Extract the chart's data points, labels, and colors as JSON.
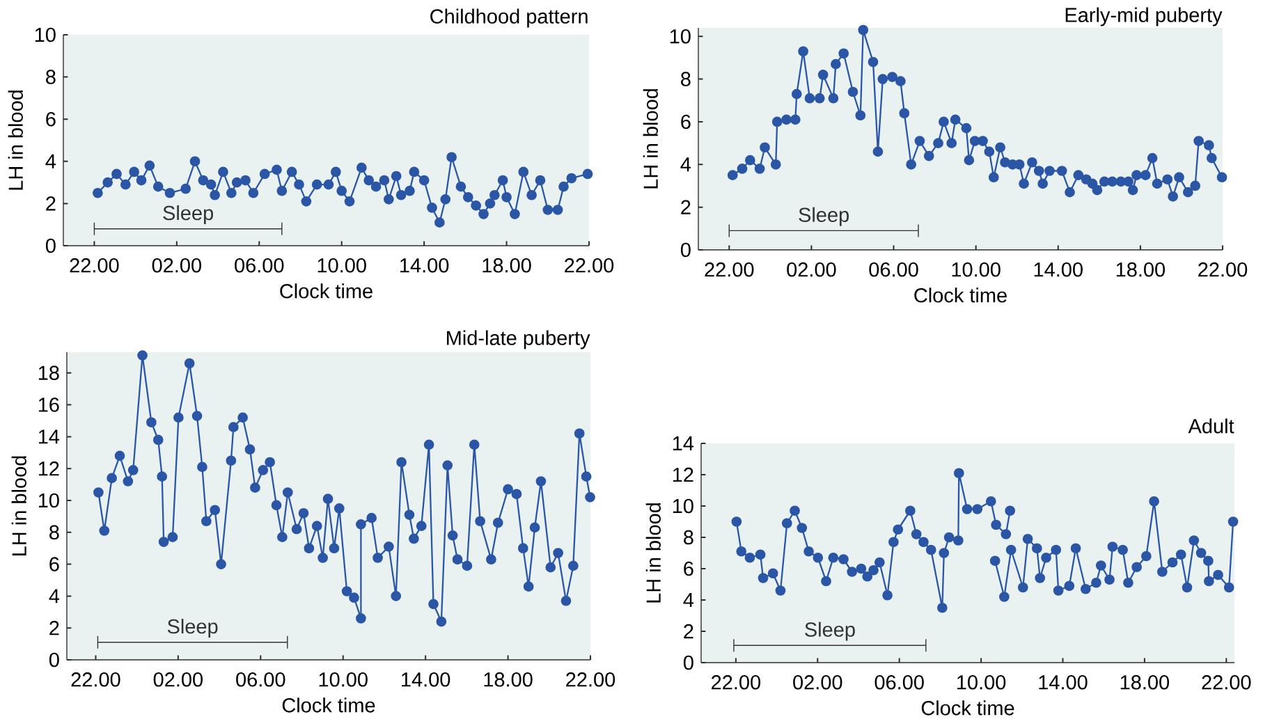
{
  "chart_data": [
    {
      "type": "line",
      "title": "Childhood pattern",
      "xlabel": "Clock time",
      "ylabel": "LH in blood",
      "marker": "circle",
      "line_style": "solid",
      "xlim": [
        "2000-01-01T20:30",
        "2000-01-02T22:00"
      ],
      "ylim": [
        0,
        10
      ],
      "xticks": [
        {
          "value": "2000-01-01T22:00",
          "label": "22.00"
        },
        {
          "value": "2000-01-02T02:00",
          "label": "02.00"
        },
        {
          "value": "2000-01-02T06:00",
          "label": "06.00"
        },
        {
          "value": "2000-01-02T10:00",
          "label": "10.00"
        },
        {
          "value": "2000-01-02T14:00",
          "label": "14.00"
        },
        {
          "value": "2000-01-02T18:00",
          "label": "18.00"
        },
        {
          "value": "2000-01-02T22:00",
          "label": "22.00"
        }
      ],
      "yticks": [
        0,
        2,
        4,
        6,
        8,
        10
      ],
      "series": [
        {
          "color": "#2a56a5",
          "x": [
            "2000-01-01T22:10",
            "2000-01-01T22:39",
            "2000-01-01T23:05",
            "2000-01-01T23:31",
            "2000-01-01T23:56",
            "2000-01-02T00:17",
            "2000-01-02T00:41",
            "2000-01-02T01:06",
            "2000-01-02T01:40",
            "2000-01-02T02:26",
            "2000-01-02T02:53",
            "2000-01-02T03:17",
            "2000-01-02T03:40",
            "2000-01-02T03:51",
            "2000-01-02T04:15",
            "2000-01-02T04:39",
            "2000-01-02T04:55",
            "2000-01-02T05:20",
            "2000-01-02T05:43",
            "2000-01-02T06:16",
            "2000-01-02T06:51",
            "2000-01-02T07:06",
            "2000-01-02T07:35",
            "2000-01-02T07:56",
            "2000-01-02T08:17",
            "2000-01-02T08:48",
            "2000-01-02T09:22",
            "2000-01-02T09:43",
            "2000-01-02T10:00",
            "2000-01-02T10:23",
            "2000-01-02T10:58",
            "2000-01-02T11:19",
            "2000-01-02T11:40",
            "2000-01-02T12:04",
            "2000-01-02T12:17",
            "2000-01-02T12:39",
            "2000-01-02T12:53",
            "2000-01-02T13:18",
            "2000-01-02T13:31",
            "2000-01-02T14:00",
            "2000-01-02T14:23",
            "2000-01-02T14:45",
            "2000-01-02T15:02",
            "2000-01-02T15:20",
            "2000-01-02T15:47",
            "2000-01-02T16:08",
            "2000-01-02T16:31",
            "2000-01-02T16:53",
            "2000-01-02T17:12",
            "2000-01-02T17:25",
            "2000-01-02T17:49",
            "2000-01-02T18:00",
            "2000-01-02T18:24",
            "2000-01-02T18:49",
            "2000-01-02T19:13",
            "2000-01-02T19:38",
            "2000-01-02T20:00",
            "2000-01-02T20:29",
            "2000-01-02T20:46",
            "2000-01-02T21:09",
            "2000-01-02T21:56"
          ],
          "values": [
            2.5,
            3.0,
            3.4,
            2.9,
            3.5,
            3.1,
            3.8,
            2.8,
            2.5,
            2.7,
            4.0,
            3.1,
            2.9,
            2.4,
            3.5,
            2.5,
            3.0,
            3.1,
            2.5,
            3.4,
            3.6,
            2.6,
            3.5,
            2.9,
            2.1,
            2.9,
            2.9,
            3.5,
            2.6,
            2.1,
            3.7,
            3.1,
            2.8,
            3.1,
            2.2,
            3.3,
            2.4,
            2.6,
            3.5,
            3.1,
            1.8,
            1.1,
            2.2,
            4.2,
            2.8,
            2.3,
            1.9,
            1.5,
            2.0,
            2.4,
            3.1,
            2.3,
            1.5,
            3.5,
            2.4,
            3.1,
            1.7,
            1.7,
            2.8,
            3.2,
            3.4
          ]
        },
        {
          "name": "Sleep",
          "color": "#333333",
          "marker": "none",
          "x": [
            "2000-01-01T22:00",
            "2000-01-02T07:06"
          ],
          "values": [
            0.8,
            0.8
          ]
        }
      ]
    },
    {
      "type": "line",
      "title": "Early-mid puberty",
      "xlabel": "Clock time",
      "ylabel": "LH in blood",
      "marker": "circle",
      "line_style": "solid",
      "xlim": [
        "2000-01-01T20:30",
        "2000-01-02T22:00"
      ],
      "ylim": [
        0,
        10.4
      ],
      "xticks": [
        {
          "value": "2000-01-01T22:00",
          "label": "22.00"
        },
        {
          "value": "2000-01-02T02:00",
          "label": "02.00"
        },
        {
          "value": "2000-01-02T06:00",
          "label": "06.00"
        },
        {
          "value": "2000-01-02T10:00",
          "label": "10.00"
        },
        {
          "value": "2000-01-02T14:00",
          "label": "14.00"
        },
        {
          "value": "2000-01-02T18:00",
          "label": "18.00"
        },
        {
          "value": "2000-01-02T22:00",
          "label": "22.00"
        }
      ],
      "yticks": [
        0,
        2,
        4,
        6,
        8,
        10
      ],
      "series": [
        {
          "color": "#2a56a5",
          "x": [
            "2000-01-01T22:10",
            "2000-01-01T22:38",
            "2000-01-01T23:01",
            "2000-01-01T23:29",
            "2000-01-01T23:44",
            "2000-01-02T00:16",
            "2000-01-02T00:20",
            "2000-01-02T00:47",
            "2000-01-02T01:13",
            "2000-01-02T01:17",
            "2000-01-02T01:36",
            "2000-01-02T01:55",
            "2000-01-02T02:24",
            "2000-01-02T02:34",
            "2000-01-02T03:04",
            "2000-01-02T03:11",
            "2000-01-02T03:34",
            "2000-01-02T04:01",
            "2000-01-02T04:23",
            "2000-01-02T04:31",
            "2000-01-02T05:00",
            "2000-01-02T05:14",
            "2000-01-02T05:28",
            "2000-01-02T05:56",
            "2000-01-02T06:20",
            "2000-01-02T06:31",
            "2000-01-02T06:51",
            "2000-01-02T07:16",
            "2000-01-02T07:43",
            "2000-01-02T08:10",
            "2000-01-02T08:26",
            "2000-01-02T08:49",
            "2000-01-02T09:00",
            "2000-01-02T09:32",
            "2000-01-02T09:40",
            "2000-01-02T09:57",
            "2000-01-02T10:20",
            "2000-01-02T10:39",
            "2000-01-02T10:52",
            "2000-01-02T11:11",
            "2000-01-02T11:25",
            "2000-01-02T11:47",
            "2000-01-02T12:07",
            "2000-01-02T12:20",
            "2000-01-02T12:44",
            "2000-01-02T13:04",
            "2000-01-02T13:15",
            "2000-01-02T13:35",
            "2000-01-02T14:11",
            "2000-01-02T14:34",
            "2000-01-02T14:59",
            "2000-01-02T15:22",
            "2000-01-02T15:40",
            "2000-01-02T15:54",
            "2000-01-02T16:15",
            "2000-01-02T16:38",
            "2000-01-02T17:03",
            "2000-01-02T17:25",
            "2000-01-02T17:38",
            "2000-01-02T17:49",
            "2000-01-02T18:15",
            "2000-01-02T18:35",
            "2000-01-02T18:49",
            "2000-01-02T19:19",
            "2000-01-02T19:35",
            "2000-01-02T19:53",
            "2000-01-02T20:19",
            "2000-01-02T20:40",
            "2000-01-02T20:50",
            "2000-01-02T21:20",
            "2000-01-02T21:28",
            "2000-01-02T21:58"
          ],
          "values": [
            3.5,
            3.8,
            4.2,
            3.8,
            4.8,
            4.0,
            6.0,
            6.1,
            6.1,
            7.3,
            9.3,
            7.1,
            7.1,
            8.2,
            7.1,
            8.7,
            9.2,
            7.4,
            6.3,
            10.3,
            8.8,
            4.6,
            8.0,
            8.1,
            7.9,
            6.4,
            4.0,
            5.1,
            4.4,
            5.0,
            6.0,
            5.0,
            6.1,
            5.7,
            4.2,
            5.1,
            5.1,
            4.6,
            3.4,
            4.8,
            4.1,
            4.0,
            4.0,
            3.1,
            4.1,
            3.7,
            3.1,
            3.7,
            3.7,
            2.7,
            3.5,
            3.3,
            3.1,
            2.8,
            3.2,
            3.2,
            3.2,
            3.2,
            2.8,
            3.5,
            3.5,
            4.3,
            3.1,
            3.3,
            2.5,
            3.4,
            2.7,
            3.0,
            5.1,
            4.9,
            4.3,
            3.4
          ]
        },
        {
          "name": "Sleep",
          "color": "#333333",
          "marker": "none",
          "x": [
            "2000-01-01T22:00",
            "2000-01-02T07:12"
          ],
          "values": [
            0.9,
            0.9
          ]
        }
      ]
    },
    {
      "type": "line",
      "title": "Mid-late puberty",
      "xlabel": "Clock time",
      "ylabel": "LH in blood",
      "marker": "circle",
      "line_style": "solid",
      "xlim": [
        "2000-01-01T20:36",
        "2000-01-02T22:00"
      ],
      "ylim": [
        0,
        19.3
      ],
      "xticks": [
        {
          "value": "2000-01-01T22:00",
          "label": "22.00"
        },
        {
          "value": "2000-01-02T02:00",
          "label": "02.00"
        },
        {
          "value": "2000-01-02T06:00",
          "label": "06.00"
        },
        {
          "value": "2000-01-02T10:00",
          "label": "10.00"
        },
        {
          "value": "2000-01-02T14:00",
          "label": "14.00"
        },
        {
          "value": "2000-01-02T18:00",
          "label": "18.00"
        },
        {
          "value": "2000-01-02T22:00",
          "label": "22.00"
        }
      ],
      "yticks": [
        0,
        2,
        4,
        6,
        8,
        10,
        12,
        14,
        16,
        18
      ],
      "series": [
        {
          "color": "#2a56a5",
          "x": [
            "2000-01-01T22:08",
            "2000-01-01T22:25",
            "2000-01-01T22:47",
            "2000-01-01T23:10",
            "2000-01-01T23:34",
            "2000-01-01T23:49",
            "2000-01-02T00:16",
            "2000-01-02T00:42",
            "2000-01-02T01:02",
            "2000-01-02T01:13",
            "2000-01-02T01:18",
            "2000-01-02T01:44",
            "2000-01-02T02:01",
            "2000-01-02T02:33",
            "2000-01-02T02:55",
            "2000-01-02T03:10",
            "2000-01-02T03:22",
            "2000-01-02T03:47",
            "2000-01-02T04:05",
            "2000-01-02T04:34",
            "2000-01-02T04:41",
            "2000-01-02T05:08",
            "2000-01-02T05:29",
            "2000-01-02T05:44",
            "2000-01-02T06:07",
            "2000-01-02T06:27",
            "2000-01-02T06:46",
            "2000-01-02T07:03",
            "2000-01-02T07:19",
            "2000-01-02T07:45",
            "2000-01-02T08:05",
            "2000-01-02T08:21",
            "2000-01-02T08:44",
            "2000-01-02T09:01",
            "2000-01-02T09:16",
            "2000-01-02T09:34",
            "2000-01-02T09:49",
            "2000-01-02T10:11",
            "2000-01-02T10:32",
            "2000-01-02T10:52",
            "2000-01-02T10:52",
            "2000-01-02T11:23",
            "2000-01-02T11:41",
            "2000-01-02T12:13",
            "2000-01-02T12:34",
            "2000-01-02T12:50",
            "2000-01-02T13:13",
            "2000-01-02T13:26",
            "2000-01-02T13:48",
            "2000-01-02T14:10",
            "2000-01-02T14:23",
            "2000-01-02T14:46",
            "2000-01-02T15:04",
            "2000-01-02T15:19",
            "2000-01-02T15:33",
            "2000-01-02T16:01",
            "2000-01-02T16:22",
            "2000-01-02T16:39",
            "2000-01-02T17:11",
            "2000-01-02T17:31",
            "2000-01-02T18:00",
            "2000-01-02T18:25",
            "2000-01-02T18:44",
            "2000-01-02T19:00",
            "2000-01-02T19:18",
            "2000-01-02T19:36",
            "2000-01-02T20:04",
            "2000-01-02T20:26",
            "2000-01-02T20:49",
            "2000-01-02T21:10",
            "2000-01-02T21:28",
            "2000-01-02T21:48",
            "2000-01-02T21:59"
          ],
          "values": [
            10.5,
            8.1,
            11.4,
            12.8,
            11.2,
            11.9,
            19.1,
            14.9,
            13.8,
            11.5,
            7.4,
            7.7,
            15.2,
            18.6,
            15.3,
            12.1,
            8.7,
            9.4,
            6.0,
            12.5,
            14.6,
            15.2,
            13.2,
            10.8,
            11.9,
            12.4,
            9.7,
            7.7,
            10.5,
            8.2,
            9.2,
            7.0,
            8.4,
            6.4,
            10.1,
            7.0,
            9.5,
            4.3,
            3.9,
            2.6,
            8.5,
            8.9,
            6.4,
            7.1,
            4.0,
            12.4,
            9.1,
            7.6,
            8.4,
            13.5,
            3.5,
            2.4,
            12.2,
            7.8,
            6.3,
            5.9,
            13.5,
            8.7,
            6.3,
            8.6,
            10.7,
            10.4,
            7.0,
            4.6,
            8.3,
            11.2,
            5.8,
            6.7,
            3.7,
            5.9,
            14.2,
            11.5,
            10.2
          ]
        },
        {
          "name": "Sleep",
          "color": "#333333",
          "marker": "none",
          "x": [
            "2000-01-01T22:06",
            "2000-01-02T07:18"
          ],
          "values": [
            1.1,
            1.1
          ]
        }
      ]
    },
    {
      "type": "line",
      "title": "Adult",
      "xlabel": "Clock time",
      "ylabel": "LH in blood",
      "marker": "circle",
      "line_style": "solid",
      "xlim": [
        "2000-01-01T20:18",
        "2000-01-02T22:24"
      ],
      "ylim": [
        0,
        14
      ],
      "xticks": [
        {
          "value": "2000-01-01T22:00",
          "label": "22.00"
        },
        {
          "value": "2000-01-02T02:00",
          "label": "02.00"
        },
        {
          "value": "2000-01-02T06:00",
          "label": "06.00"
        },
        {
          "value": "2000-01-02T10:00",
          "label": "10.00"
        },
        {
          "value": "2000-01-02T14:00",
          "label": "14.00"
        },
        {
          "value": "2000-01-02T18:00",
          "label": "18.00"
        },
        {
          "value": "2000-01-02T22:00",
          "label": "22.00"
        }
      ],
      "yticks": [
        0,
        2,
        4,
        6,
        8,
        10,
        12,
        14
      ],
      "series": [
        {
          "color": "#2a56a5",
          "x": [
            "2000-01-01T22:02",
            "2000-01-01T22:16",
            "2000-01-01T22:41",
            "2000-01-01T23:12",
            "2000-01-01T23:20",
            "2000-01-01T23:49",
            "2000-01-02T00:11",
            "2000-01-02T00:30",
            "2000-01-02T00:53",
            "2000-01-02T01:14",
            "2000-01-02T01:34",
            "2000-01-02T02:01",
            "2000-01-02T02:25",
            "2000-01-02T02:46",
            "2000-01-02T03:16",
            "2000-01-02T03:41",
            "2000-01-02T04:08",
            "2000-01-02T04:26",
            "2000-01-02T04:44",
            "2000-01-02T05:02",
            "2000-01-02T05:25",
            "2000-01-02T05:43",
            "2000-01-02T05:56",
            "2000-01-02T06:32",
            "2000-01-02T06:50",
            "2000-01-02T07:11",
            "2000-01-02T07:33",
            "2000-01-02T08:06",
            "2000-01-02T08:11",
            "2000-01-02T08:26",
            "2000-01-02T08:53",
            "2000-01-02T08:55",
            "2000-01-02T09:19",
            "2000-01-02T09:49",
            "2000-01-02T10:29",
            "2000-01-02T10:44",
            "2000-01-02T11:13",
            "2000-01-02T11:25"
          ],
          "values": [
            9.0,
            7.1,
            6.7,
            6.9,
            5.4,
            5.7,
            4.6,
            8.9,
            9.7,
            8.6,
            7.1,
            6.7,
            5.2,
            6.7,
            6.6,
            5.8,
            6.0,
            5.5,
            5.9,
            6.4,
            4.3,
            7.7,
            8.5,
            9.7,
            8.2,
            7.7,
            7.2,
            3.5,
            7.0,
            8.0,
            7.8,
            12.1,
            9.8,
            9.8,
            10.3,
            8.8,
            8.2,
            9.7
          ]
        },
        {
          "color": "#2a56a5",
          "x": [
            "2000-01-02T10:41",
            "2000-01-02T11:08",
            "2000-01-02T11:28",
            "2000-01-02T12:03",
            "2000-01-02T12:17",
            "2000-01-02T12:44",
            "2000-01-02T12:53",
            "2000-01-02T13:11",
            "2000-01-02T13:40",
            "2000-01-02T13:47",
            "2000-01-02T14:19",
            "2000-01-02T14:38",
            "2000-01-02T15:07",
            "2000-01-02T15:38",
            "2000-01-02T15:52",
            "2000-01-02T16:17",
            "2000-01-02T16:26",
            "2000-01-02T16:56",
            "2000-01-02T17:12",
            "2000-01-02T17:37",
            "2000-01-02T18:05",
            "2000-01-02T18:28",
            "2000-01-02T18:52",
            "2000-01-02T19:22",
            "2000-01-02T19:47",
            "2000-01-02T20:05",
            "2000-01-02T20:25",
            "2000-01-02T20:46",
            "2000-01-02T21:07",
            "2000-01-02T21:09",
            "2000-01-02T21:36",
            "2000-01-02T22:08",
            "2000-01-02T22:20"
          ],
          "values": [
            6.5,
            4.2,
            7.2,
            4.8,
            7.9,
            7.3,
            5.4,
            6.7,
            7.2,
            4.6,
            4.9,
            7.3,
            4.7,
            5.1,
            6.2,
            5.3,
            7.4,
            7.2,
            5.1,
            6.1,
            6.8,
            10.3,
            5.8,
            6.4,
            6.9,
            4.8,
            7.8,
            7.0,
            6.5,
            5.2,
            5.6,
            4.8,
            9.0
          ]
        },
        {
          "name": "Sleep",
          "color": "#333333",
          "marker": "none",
          "x": [
            "2000-01-01T21:54",
            "2000-01-02T07:18"
          ],
          "values": [
            1.1,
            1.1
          ]
        }
      ]
    }
  ]
}
